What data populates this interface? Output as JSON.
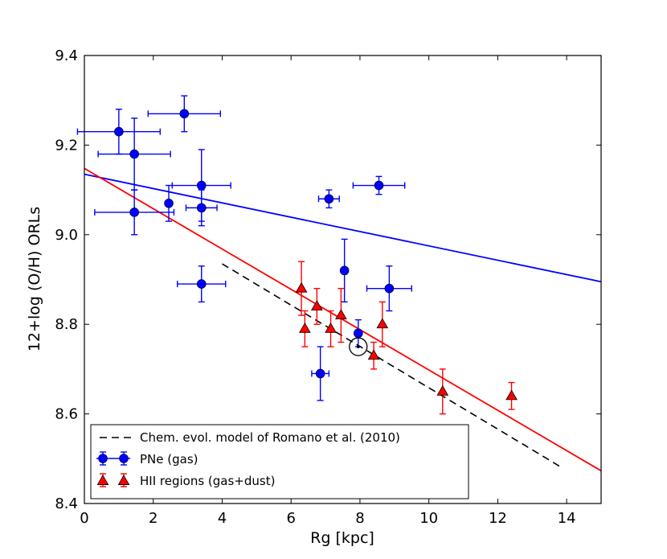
{
  "chart_data": {
    "type": "scatter",
    "xlabel": "Rg [kpc]",
    "ylabel": "12+log (O/H) ORLs",
    "xlim": [
      0,
      15
    ],
    "ylim": [
      8.4,
      9.4
    ],
    "xticks": [
      "0",
      "2",
      "4",
      "6",
      "8",
      "10",
      "12",
      "14"
    ],
    "yticks": [
      "8.4",
      "8.6",
      "8.8",
      "9.0",
      "9.2",
      "9.4"
    ],
    "xtick_values": [
      0,
      2,
      4,
      6,
      8,
      10,
      12,
      14
    ],
    "ytick_values": [
      8.4,
      8.6,
      8.8,
      9.0,
      9.2,
      9.4
    ],
    "colors": {
      "pne": "#0000ff",
      "hii": "#ff0000",
      "model": "#000000",
      "marker_edge": "#000000"
    },
    "series": [
      {
        "name": "PNe (gas)",
        "marker": "circle",
        "points": [
          {
            "x": 1.0,
            "y": 9.23,
            "xerr": 1.2,
            "yerr": 0.05
          },
          {
            "x": 1.45,
            "y": 9.18,
            "xerr": 1.05,
            "yerr": 0.08
          },
          {
            "x": 1.45,
            "y": 9.05,
            "xerr": 1.15,
            "yerr": 0.05
          },
          {
            "x": 2.9,
            "y": 9.27,
            "xerr": 1.05,
            "yerr": 0.04
          },
          {
            "x": 2.45,
            "y": 9.07,
            "xerr": 0.0,
            "yerr": 0.04
          },
          {
            "x": 3.4,
            "y": 9.11,
            "xerr": 0.85,
            "yerr": 0.08
          },
          {
            "x": 3.4,
            "y": 9.06,
            "xerr": 0.45,
            "yerr": 0.04
          },
          {
            "x": 3.4,
            "y": 8.89,
            "xerr": 0.7,
            "yerr": 0.04
          },
          {
            "x": 7.1,
            "y": 9.08,
            "xerr": 0.3,
            "yerr": 0.02
          },
          {
            "x": 8.55,
            "y": 9.11,
            "xerr": 0.75,
            "yerr": 0.02
          },
          {
            "x": 7.55,
            "y": 8.92,
            "xerr": 0.0,
            "yerr": 0.07
          },
          {
            "x": 8.85,
            "y": 8.88,
            "xerr": 0.65,
            "yerr": 0.05
          },
          {
            "x": 7.95,
            "y": 8.78,
            "xerr": 0.0,
            "yerr": 0.03
          },
          {
            "x": 6.85,
            "y": 8.69,
            "xerr": 0.25,
            "yerr": 0.06
          }
        ]
      },
      {
        "name": "HII regions (gas+dust)",
        "marker": "triangle",
        "points": [
          {
            "x": 6.3,
            "y": 8.88,
            "yerr": 0.06
          },
          {
            "x": 6.4,
            "y": 8.79,
            "yerr": 0.04
          },
          {
            "x": 6.75,
            "y": 8.84,
            "yerr": 0.04
          },
          {
            "x": 7.15,
            "y": 8.79,
            "yerr": 0.04
          },
          {
            "x": 7.45,
            "y": 8.82,
            "yerr": 0.06
          },
          {
            "x": 8.4,
            "y": 8.73,
            "yerr": 0.03
          },
          {
            "x": 8.65,
            "y": 8.8,
            "yerr": 0.05
          },
          {
            "x": 10.4,
            "y": 8.65,
            "yerr": 0.05
          },
          {
            "x": 12.4,
            "y": 8.64,
            "yerr": 0.03
          }
        ]
      }
    ],
    "fit_lines": [
      {
        "name": "PNe fit",
        "color": "#0000ff",
        "x": [
          0,
          15
        ],
        "y": [
          9.135,
          8.895
        ]
      },
      {
        "name": "HII fit",
        "color": "#ff0000",
        "x": [
          0,
          15
        ],
        "y": [
          9.148,
          8.473
        ]
      }
    ],
    "model_line": {
      "name": "Chem. evol. model of Romano et al. (2010)",
      "style": "dashed",
      "x": [
        4.0,
        13.8
      ],
      "y": [
        8.935,
        8.483
      ]
    },
    "sun": {
      "x": 7.95,
      "y": 8.75
    },
    "legend": {
      "placement": "lower-left",
      "entries": [
        "Chem. evol. model of Romano et al. (2010)",
        "PNe (gas)",
        "HII regions (gas+dust)"
      ]
    }
  }
}
